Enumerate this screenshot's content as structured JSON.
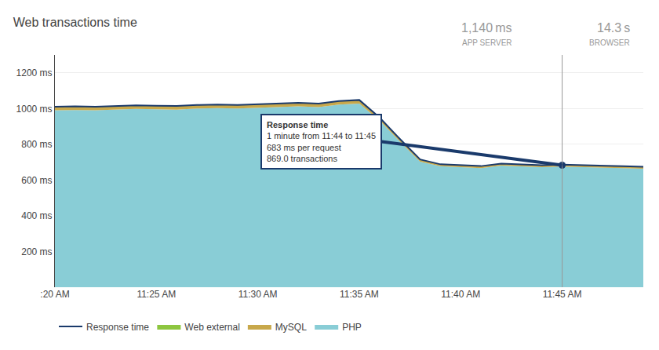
{
  "chart_data": {
    "type": "area",
    "title": "Web transactions time",
    "stacked": true,
    "grid": true,
    "legend": "bottom",
    "categories": [
      ":20 AM",
      null,
      null,
      null,
      null,
      "11:25 AM",
      null,
      null,
      null,
      null,
      "11:30 AM",
      null,
      null,
      null,
      null,
      "11:35 AM",
      null,
      null,
      null,
      null,
      "11:40 AM",
      null,
      null,
      null,
      null,
      "11:45 AM",
      null,
      null,
      null,
      null
    ],
    "series": [
      {
        "name": "PHP",
        "type": "area",
        "color": "#89cdd6",
        "values": [
          990,
          992,
          990,
          995,
          998,
          996,
          994,
          1000,
          1002,
          1000,
          1005,
          1010,
          1012,
          1008,
          1022,
          1028,
          933,
          816,
          703,
          677,
          671,
          667,
          681,
          677,
          672,
          675,
          671,
          669,
          666,
          663
        ]
      },
      {
        "name": "MySQL",
        "type": "area",
        "color": "#c8a84b",
        "values": [
          20,
          20,
          20,
          20,
          20,
          20,
          20,
          20,
          20,
          20,
          20,
          20,
          20,
          20,
          20,
          20,
          17,
          14,
          12,
          11,
          11,
          11,
          11,
          11,
          11,
          11,
          11,
          11,
          11,
          11
        ]
      },
      {
        "name": "Web external",
        "type": "area",
        "color": "#8dc63f",
        "values": [
          null,
          null,
          null,
          null,
          null,
          null,
          null,
          null,
          null,
          null,
          null,
          null,
          null,
          null,
          null,
          null,
          null,
          null,
          null,
          null,
          null,
          null,
          null,
          null,
          null,
          null,
          null,
          null,
          null,
          null
        ]
      },
      {
        "name": "Response time",
        "type": "line",
        "color": "#1a3a6b",
        "values": [
          1010,
          1012,
          1010,
          1015,
          1018,
          1016,
          1014,
          1020,
          1022,
          1020,
          1025,
          1030,
          1032,
          1028,
          1042,
          1048,
          950,
          830,
          715,
          688,
          682,
          678,
          692,
          688,
          683,
          686,
          682,
          680,
          677,
          674
        ]
      }
    ],
    "ylim": [
      0,
      1300
    ],
    "yticks": [
      {
        "value": 200,
        "label": "200 ms"
      },
      {
        "value": 400,
        "label": "400 ms"
      },
      {
        "value": 600,
        "label": "600 ms"
      },
      {
        "value": 800,
        "label": "800 ms"
      },
      {
        "value": 1000,
        "label": "1000 ms"
      },
      {
        "value": 1200,
        "label": "1200 ms"
      }
    ],
    "annotations": [
      {
        "text": "1,140 ms"
      },
      {
        "text": "APP SERVER"
      },
      {
        "text": "14.3 s"
      },
      {
        "text": "BROWSER"
      },
      {
        "x": 25,
        "y": 683,
        "color": "#1a3a6b",
        "text": [
          "Response time",
          "1 minute from 11:44 to 11:45",
          "683 ms per request",
          "869.0 transactions"
        ]
      }
    ]
  }
}
